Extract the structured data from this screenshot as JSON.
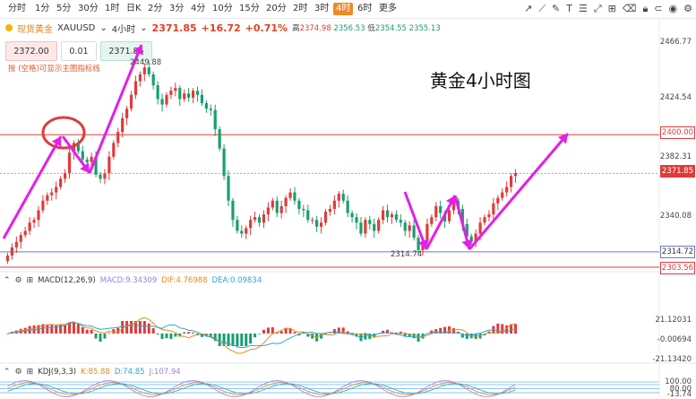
{
  "toolbar": {
    "timeframes": [
      "分时",
      "1分",
      "5分",
      "30分",
      "1时",
      "日K",
      "2分",
      "3分",
      "4分",
      "10分",
      "15分",
      "20分",
      "2时",
      "3时",
      "4时",
      "6时",
      "更多"
    ],
    "active_timeframe": "4时",
    "tools": [
      "trend-icon",
      "ruler-icon",
      "pencil-icon",
      "text-icon",
      "fib-icon",
      "fullscreen-icon",
      "indicator-icon",
      "eraser-icon",
      "lock-icon",
      "magnet-icon",
      "eye-icon",
      "settings-icon"
    ]
  },
  "quote": {
    "name": "现货黄金",
    "symbol": "XAUUSD",
    "period": "4小时",
    "price": "2371.85",
    "change": "+16.72",
    "change_pct": "+0.71%",
    "high_label": "高",
    "high": "2374.98",
    "open": "2356.53",
    "low_label": "低",
    "low": "2354.55",
    "prev": "2355.13"
  },
  "order": {
    "sell": "2372.00",
    "qty": "0.01",
    "buy": "2371.85"
  },
  "hint": "按 (空格)可显示主图指标线",
  "annotation_title": "黄金4小时图",
  "price_axis": {
    "ticks": [
      "2466.77",
      "2424.54",
      "2382.31",
      "2340.08"
    ],
    "tags": {
      "resistance": "2400.00",
      "current": "2371.85",
      "support1": "2314.72",
      "support2": "2303.56"
    }
  },
  "chart_labels": {
    "high_mark": "2449.88",
    "low_mark": "2314.74"
  },
  "macd": {
    "name": "MACD(12,26,9)",
    "macd": "MACD:9.34309",
    "dif": "DIF:4.76988",
    "dea": "DEA:0.09834",
    "ticks": [
      "21.12031",
      "-0.00694",
      "-21.13420"
    ]
  },
  "kdj": {
    "name": "KDJ(9,3,3)",
    "k": "K:85.88",
    "d": "D:74.85",
    "j": "J:107.94",
    "ticks": [
      "100.00",
      "80.00",
      "50.00",
      "20.00",
      "-13.74"
    ]
  },
  "colors": {
    "up": "#e03b3b",
    "down": "#1a9e6e",
    "accent": "#f08a24",
    "arrow": "#e31fe8",
    "circle": "#e03b3b"
  },
  "chart_data": {
    "type": "candlestick",
    "series": [
      {
        "name": "price",
        "values": [
          2312,
          2318,
          2322,
          2327,
          2330,
          2336,
          2338,
          2345,
          2352,
          2356,
          2358,
          2362,
          2368,
          2372,
          2387,
          2394,
          2388,
          2382,
          2380,
          2384,
          2371,
          2368,
          2372,
          2384,
          2394,
          2402,
          2412,
          2419,
          2429,
          2439,
          2444,
          2449,
          2444,
          2436,
          2426,
          2422,
          2429,
          2432,
          2434,
          2426,
          2430,
          2427,
          2432,
          2429,
          2423,
          2419,
          2418,
          2404,
          2390,
          2370,
          2352,
          2338,
          2330,
          2328,
          2332,
          2338,
          2340,
          2336,
          2342,
          2347,
          2352,
          2343,
          2348,
          2354,
          2358,
          2352,
          2346,
          2345,
          2338,
          2338,
          2333,
          2336,
          2344,
          2346,
          2352,
          2357,
          2352,
          2343,
          2340,
          2336,
          2328,
          2338,
          2335,
          2330,
          2338,
          2345,
          2340,
          2342,
          2338,
          2336,
          2330,
          2334,
          2325,
          2316,
          2322,
          2335,
          2340,
          2348,
          2343,
          2337,
          2345,
          2352,
          2346,
          2335,
          2326,
          2322,
          2328,
          2336,
          2340,
          2342,
          2350,
          2354,
          2358,
          2362,
          2370,
          2372
        ]
      }
    ],
    "ylim": [
      2303.56,
      2466.77
    ]
  }
}
